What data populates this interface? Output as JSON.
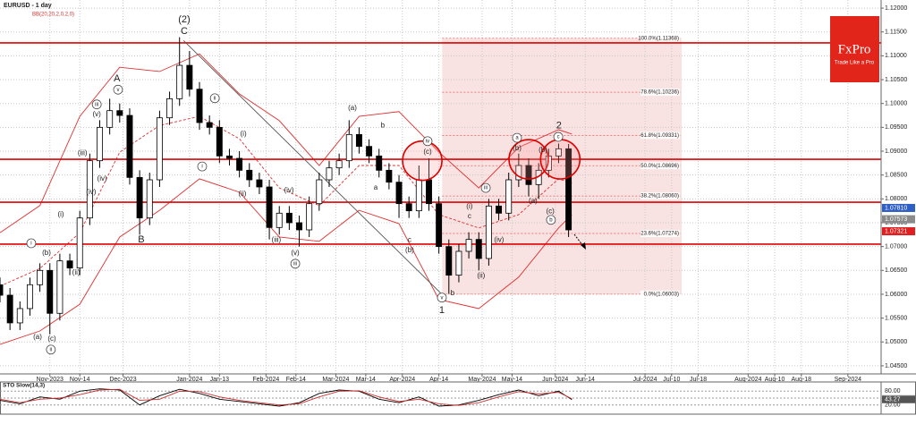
{
  "chart_data": [
    {
      "type": "candlestick",
      "title": "EURUSD - 1 day",
      "subtitle": "BB(20,20,2,0,2,0)",
      "x": [
        -15,
        -12,
        -9,
        -6,
        -3,
        0,
        3,
        6,
        9,
        12,
        15,
        18,
        21,
        24,
        27,
        30,
        33,
        36,
        39,
        42,
        45,
        48,
        51,
        54,
        57,
        60,
        63,
        66,
        69,
        72,
        75,
        78,
        81,
        84,
        87,
        90,
        93,
        96,
        99,
        102,
        105,
        108,
        111,
        114,
        117,
        120,
        123,
        126,
        129,
        132,
        135,
        138,
        141,
        144,
        147,
        150,
        153,
        156
      ],
      "open": [
        1.062,
        1.0598,
        1.054,
        1.057,
        1.062,
        1.065,
        1.056,
        1.067,
        1.0655,
        1.076,
        1.088,
        1.095,
        1.0985,
        1.0975,
        1.0845,
        1.076,
        1.084,
        1.097,
        1.101,
        1.108,
        1.103,
        1.096,
        1.095,
        1.089,
        1.0885,
        1.086,
        1.084,
        1.0825,
        1.074,
        1.077,
        1.075,
        1.0735,
        1.079,
        1.084,
        1.0865,
        1.088,
        1.0935,
        1.091,
        1.089,
        1.086,
        1.0835,
        1.079,
        1.0775,
        1.084,
        1.079,
        1.07,
        1.064,
        1.069,
        1.0715,
        1.0675,
        1.0785,
        1.077,
        1.084,
        1.087,
        1.083,
        1.086,
        1.089,
        1.0905
      ],
      "high": [
        1.0635,
        1.0613,
        1.0585,
        1.0635,
        1.0665,
        1.0665,
        1.0685,
        1.0685,
        1.0775,
        1.0895,
        1.0965,
        1.101,
        1.1,
        1.099,
        1.086,
        1.0855,
        1.0985,
        1.1025,
        1.1139,
        1.111,
        1.1045,
        1.0975,
        1.0965,
        1.0905,
        1.09,
        1.0875,
        1.0855,
        1.084,
        1.0785,
        1.0785,
        1.0765,
        1.0805,
        1.0855,
        1.088,
        1.0895,
        1.0965,
        1.095,
        1.0925,
        1.0905,
        1.0875,
        1.085,
        1.0805,
        1.087,
        1.0885,
        1.0805,
        1.0715,
        1.0705,
        1.073,
        1.073,
        1.08,
        1.08,
        1.0855,
        1.0895,
        1.0885,
        1.0875,
        1.0905,
        1.0916,
        1.0915
      ],
      "low": [
        1.0583,
        1.0525,
        1.0525,
        1.0555,
        1.0605,
        1.0516,
        1.0545,
        1.064,
        1.064,
        1.0745,
        1.0865,
        1.0935,
        1.096,
        1.083,
        1.0725,
        1.0745,
        1.0825,
        1.0955,
        1.0995,
        1.1015,
        1.0945,
        1.0935,
        1.0875,
        1.087,
        1.0845,
        1.0825,
        1.081,
        1.0715,
        1.0725,
        1.0735,
        1.07,
        1.072,
        1.0775,
        1.0825,
        1.085,
        1.0865,
        1.0895,
        1.0875,
        1.0845,
        1.082,
        1.076,
        1.076,
        1.076,
        1.0775,
        1.0685,
        1.0601,
        1.0625,
        1.0675,
        1.065,
        1.066,
        1.0755,
        1.0755,
        1.0825,
        1.0805,
        1.08,
        1.0845,
        1.0875,
        1.072
      ],
      "close": [
        1.0598,
        1.054,
        1.057,
        1.062,
        1.065,
        1.056,
        1.067,
        1.0655,
        1.076,
        1.088,
        1.095,
        1.0985,
        1.0975,
        1.0845,
        1.076,
        1.084,
        1.097,
        1.101,
        1.108,
        1.103,
        1.096,
        1.095,
        1.089,
        1.0885,
        1.086,
        1.084,
        1.0825,
        1.074,
        1.077,
        1.075,
        1.0735,
        1.079,
        1.084,
        1.0865,
        1.088,
        1.0935,
        1.091,
        1.089,
        1.086,
        1.0835,
        1.079,
        1.0775,
        1.084,
        1.079,
        1.07,
        1.064,
        1.069,
        1.0715,
        1.0675,
        1.0785,
        1.077,
        1.084,
        1.087,
        1.083,
        1.086,
        1.089,
        1.0905,
        1.0735
      ],
      "up_color": "#ffffff",
      "down_color": "#000000",
      "xlim": [
        -15,
        250
      ],
      "ylim": [
        1.0433,
        1.1217
      ],
      "grid": true,
      "xticks": [
        {
          "value": 0,
          "label": "Nov-2023"
        },
        {
          "value": 9,
          "label": "Nov-14"
        },
        {
          "value": 22,
          "label": "Dec-2023"
        },
        {
          "value": 42,
          "label": "Jan-2024"
        },
        {
          "value": 51,
          "label": "Jan-13"
        },
        {
          "value": 65,
          "label": "Feb-2024"
        },
        {
          "value": 74,
          "label": "Feb-14"
        },
        {
          "value": 86,
          "label": "Mar-2024"
        },
        {
          "value": 95,
          "label": "Mar-14"
        },
        {
          "value": 106,
          "label": "Apr-2024"
        },
        {
          "value": 117,
          "label": "Apr-14"
        },
        {
          "value": 130,
          "label": "May-2024"
        },
        {
          "value": 139,
          "label": "May-14"
        },
        {
          "value": 152,
          "label": "Jun-2024"
        },
        {
          "value": 161,
          "label": "Jun-14"
        },
        {
          "value": 179,
          "label": "Jul-2024"
        },
        {
          "value": 187,
          "label": "Jul-10"
        },
        {
          "value": 195,
          "label": "Jul-18"
        },
        {
          "value": 210,
          "label": "Aug-2024"
        },
        {
          "value": 218,
          "label": "Aug-10"
        },
        {
          "value": 226,
          "label": "Aug-18"
        },
        {
          "value": 240,
          "label": "Sep-2024"
        }
      ],
      "yticks": [
        {
          "value": 1.12,
          "label": "1.12000"
        },
        {
          "value": 1.115,
          "label": "1.11500"
        },
        {
          "value": 1.11,
          "label": "1.11000"
        },
        {
          "value": 1.105,
          "label": "1.10500"
        },
        {
          "value": 1.1,
          "label": "1.10000"
        },
        {
          "value": 1.095,
          "label": "1.09500"
        },
        {
          "value": 1.09,
          "label": "1.09000"
        },
        {
          "value": 1.085,
          "label": "1.08500"
        },
        {
          "value": 1.08,
          "label": "1.08000"
        },
        {
          "value": 1.075,
          "label": "1.07500"
        },
        {
          "value": 1.07,
          "label": "1.07000"
        },
        {
          "value": 1.065,
          "label": "1.06500"
        },
        {
          "value": 1.06,
          "label": "1.06000"
        },
        {
          "value": 1.055,
          "label": "1.05500"
        },
        {
          "value": 1.05,
          "label": "1.05000"
        },
        {
          "value": 1.045,
          "label": "1.04500"
        }
      ],
      "bands": {
        "color": "#e03030",
        "x": [
          -15,
          -3,
          9,
          21,
          33,
          45,
          57,
          69,
          81,
          93,
          105,
          117,
          129,
          141,
          153,
          157
        ],
        "upper": [
          1.0729,
          1.0786,
          1.0973,
          1.1076,
          1.1067,
          1.1104,
          1.102,
          1.0964,
          1.087,
          1.0973,
          1.0983,
          1.0898,
          1.0823,
          1.0908,
          1.0945,
          1.0936
        ],
        "middle": [
          1.0617,
          1.0654,
          1.0729,
          1.0898,
          1.0954,
          1.0973,
          1.0926,
          1.0823,
          1.0786,
          1.087,
          1.087,
          1.0767,
          1.0739,
          1.0767,
          1.0842,
          1.0833
        ],
        "lower": [
          1.0495,
          1.0523,
          1.0579,
          1.072,
          1.0776,
          1.0842,
          1.0814,
          1.072,
          1.0711,
          1.0776,
          1.0748,
          1.0589,
          1.057,
          1.0636,
          1.0739,
          1.0767
        ]
      },
      "levels": {
        "color": "#e00000",
        "values": [
          1.1127,
          1.0883,
          1.0793,
          1.0705
        ]
      },
      "trendline": {
        "x": [
          40.2,
          118.2
        ],
        "y": [
          1.1132,
          1.0598
        ]
      },
      "fibonacci": {
        "x": [
          118,
          190
        ],
        "color": "#e06060",
        "levels": [
          {
            "value": 1.11368,
            "label": "100.0%(1.11368)"
          },
          {
            "value": 1.10236,
            "label": "78.6%(1.10236)"
          },
          {
            "value": 1.09331,
            "label": "61.8%(1.09331)"
          },
          {
            "value": 1.08696,
            "label": "50.0%(1.08696)"
          },
          {
            "value": 1.0806,
            "label": "38.2%(1.08060)"
          },
          {
            "value": 1.07274,
            "label": "23.6%(1.07274)"
          },
          {
            "value": 1.06003,
            "label": "0.0%(1.06003)"
          }
        ]
      },
      "highlights": {
        "x": [
          112,
          144,
          153.5
        ],
        "y": [
          1.088,
          1.0883,
          1.0883
        ]
      },
      "waves": [
        {
          "text": "(2)",
          "x": 40.4,
          "y": 1.1176,
          "circled": false
        },
        {
          "text": "C",
          "x": 40.4,
          "y": 1.1151,
          "circled": false
        },
        {
          "text": "A",
          "x": 20.2,
          "y": 1.1052,
          "circled": false
        },
        {
          "text": "v",
          "x": 20.5,
          "y": 1.1029,
          "circled": true
        },
        {
          "text": "iii",
          "x": 14.1,
          "y": 1.0998,
          "circled": true
        },
        {
          "text": "(v)",
          "x": 14.1,
          "y": 1.0977,
          "circled": false
        },
        {
          "text": "(iii)",
          "x": 9.8,
          "y": 1.0896,
          "circled": false
        },
        {
          "text": "(iv)",
          "x": 15.7,
          "y": 1.0842,
          "circled": false
        },
        {
          "text": "(iv)",
          "x": 12.4,
          "y": 1.0814,
          "circled": false
        },
        {
          "text": "(i)",
          "x": 3.3,
          "y": 1.0767,
          "circled": false
        },
        {
          "text": "(b)",
          "x": -1.0,
          "y": 1.0686,
          "circled": false
        },
        {
          "text": "(ii)",
          "x": 7.9,
          "y": 1.0645,
          "circled": false
        },
        {
          "text": "i",
          "x": -5.6,
          "y": 1.0707,
          "circled": true
        },
        {
          "text": "(a)",
          "x": -3.7,
          "y": 1.051,
          "circled": false
        },
        {
          "text": "(c)",
          "x": 0.6,
          "y": 1.0506,
          "circled": false
        },
        {
          "text": "ii",
          "x": 0.3,
          "y": 1.0484,
          "circled": true
        },
        {
          "text": "B",
          "x": 27.5,
          "y": 1.0714,
          "circled": false
        },
        {
          "text": "i",
          "x": 45.8,
          "y": 1.0868,
          "circled": true
        },
        {
          "text": "ii",
          "x": 49.6,
          "y": 1.1011,
          "circled": true
        },
        {
          "text": "(i)",
          "x": 58.2,
          "y": 1.0936,
          "circled": false
        },
        {
          "text": "(ii)",
          "x": 57.9,
          "y": 1.081,
          "circled": false
        },
        {
          "text": "(iv)",
          "x": 71.9,
          "y": 1.0818,
          "circled": false
        },
        {
          "text": "(iii)",
          "x": 68.1,
          "y": 1.0714,
          "circled": false
        },
        {
          "text": "(v)",
          "x": 73.8,
          "y": 1.0686,
          "circled": false
        },
        {
          "text": "iii",
          "x": 73.8,
          "y": 1.0664,
          "circled": true
        },
        {
          "text": "(a)",
          "x": 91.0,
          "y": 1.099,
          "circled": false
        },
        {
          "text": "b",
          "x": 100.1,
          "y": 1.0954,
          "circled": false
        },
        {
          "text": "a",
          "x": 98.0,
          "y": 1.0823,
          "circled": false
        },
        {
          "text": "c",
          "x": 108.2,
          "y": 1.0714,
          "circled": false
        },
        {
          "text": "(b)",
          "x": 108.2,
          "y": 1.0692,
          "circled": false
        },
        {
          "text": "iv",
          "x": 113.6,
          "y": 1.0921,
          "circled": true
        },
        {
          "text": "(c)",
          "x": 113.6,
          "y": 1.0898,
          "circled": false
        },
        {
          "text": "v",
          "x": 117.9,
          "y": 1.0593,
          "circled": true
        },
        {
          "text": "b",
          "x": 121.1,
          "y": 1.0602,
          "circled": false
        },
        {
          "text": "1",
          "x": 117.9,
          "y": 1.0566,
          "circled": false
        },
        {
          "text": "(i)",
          "x": 126.2,
          "y": 1.0784,
          "circled": false
        },
        {
          "text": "c",
          "x": 126.2,
          "y": 1.0763,
          "circled": false
        },
        {
          "text": "(ii)",
          "x": 129.7,
          "y": 1.0639,
          "circled": false
        },
        {
          "text": "iii",
          "x": 131.1,
          "y": 1.0823,
          "circled": true
        },
        {
          "text": "(iv)",
          "x": 135.1,
          "y": 1.0714,
          "circled": false
        },
        {
          "text": "a",
          "x": 140.5,
          "y": 1.0928,
          "circled": true
        },
        {
          "text": "(b)",
          "x": 140.5,
          "y": 1.0906,
          "circled": false
        },
        {
          "text": "(a)",
          "x": 145.3,
          "y": 1.0795,
          "circled": false
        },
        {
          "text": "(b)",
          "x": 148.3,
          "y": 1.0902,
          "circled": false
        },
        {
          "text": "c",
          "x": 152.9,
          "y": 1.093,
          "circled": true
        },
        {
          "text": "2",
          "x": 153.1,
          "y": 1.0953,
          "circled": false
        },
        {
          "text": "(c)",
          "x": 150.5,
          "y": 1.0774,
          "circled": false
        },
        {
          "text": "b",
          "x": 150.7,
          "y": 1.0756,
          "circled": true
        }
      ],
      "price_markers": [
        {
          "value": 1.0781,
          "label": "1.07810",
          "color": "#2f5fc4"
        },
        {
          "value": 1.07573,
          "label": "1.07573",
          "color": "#8a8a8a"
        },
        {
          "value": 1.07321,
          "label": "1.07321",
          "color": "#e02020"
        }
      ],
      "logo": {
        "title": "FxPro",
        "subtitle": "Trade Like a Pro",
        "color": "#e1251b"
      }
    },
    {
      "type": "line",
      "title": "STO Slow(14,3)",
      "x": [
        -15,
        -9,
        -3,
        3,
        9,
        15,
        21,
        27,
        33,
        39,
        45,
        51,
        57,
        63,
        69,
        75,
        81,
        87,
        93,
        99,
        105,
        111,
        117,
        123,
        129,
        135,
        141,
        147,
        153,
        157
      ],
      "series": [
        {
          "color": "#000000",
          "values": [
            40,
            25,
            55,
            45,
            80,
            90,
            85,
            20,
            60,
            88,
            70,
            45,
            35,
            25,
            15,
            30,
            70,
            85,
            80,
            45,
            30,
            55,
            15,
            20,
            40,
            65,
            85,
            60,
            80,
            43.27
          ]
        },
        {
          "color": "#d03030",
          "values": [
            45,
            30,
            45,
            50,
            65,
            85,
            88,
            40,
            45,
            80,
            78,
            55,
            40,
            30,
            20,
            25,
            55,
            80,
            82,
            55,
            35,
            45,
            25,
            18,
            30,
            55,
            78,
            68,
            75,
            47.01
          ]
        }
      ],
      "xlim": [
        -15,
        250
      ],
      "ylim": [
        -20,
        120
      ],
      "yticks": [
        {
          "value": 80,
          "label": "80.00"
        },
        {
          "value": 50,
          "label": "50.00"
        },
        {
          "value": 20,
          "label": "20.00"
        }
      ],
      "price_markers": [
        {
          "value": 47.01,
          "label": "47.01",
          "color": "#8a8a8a"
        },
        {
          "value": 43.27,
          "label": "43.27",
          "color": "#555555"
        }
      ]
    }
  ]
}
